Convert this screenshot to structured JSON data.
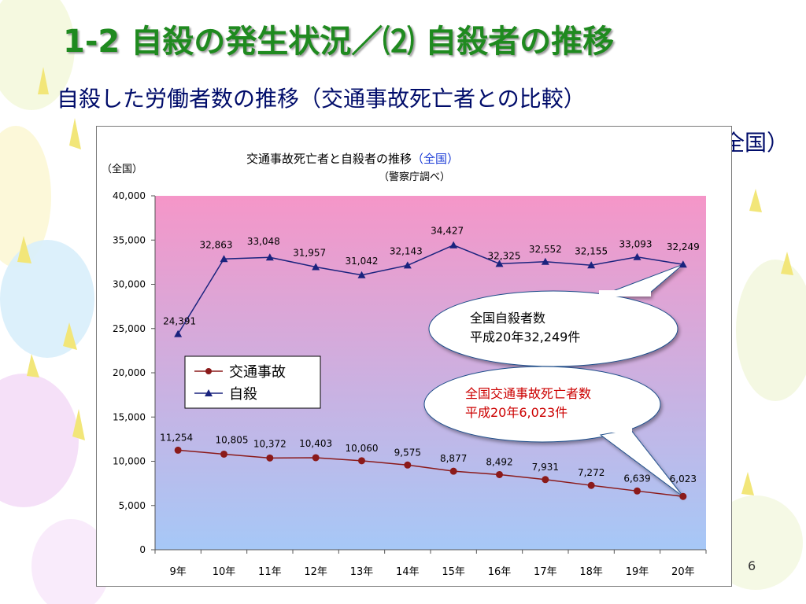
{
  "slide": {
    "title": "1-2 自殺の発生状況／⑵ 自殺者の推移",
    "subtitle": "自殺した労働者数の推移（交通事故死亡者との比較）",
    "region": "（全国）",
    "page_number": "6"
  },
  "colors": {
    "title": "#1f8a1f",
    "subtitle": "#000c6a",
    "suicide_series": "#1a237e",
    "traffic_series": "#8b1a1a",
    "plot_top": "#f596c8",
    "plot_bottom": "#a6c8f7"
  },
  "chart_data": {
    "type": "line",
    "title": "交通事故死亡者と自殺者の推移",
    "title_suffix": "（全国）",
    "subtitle": "（警察庁調べ）",
    "ylabel": "（全国）",
    "categories": [
      "9年",
      "10年",
      "11年",
      "12年",
      "13年",
      "14年",
      "15年",
      "16年",
      "17年",
      "18年",
      "19年",
      "20年"
    ],
    "ylim": [
      0,
      40000
    ],
    "yticks": [
      0,
      5000,
      10000,
      15000,
      20000,
      25000,
      30000,
      35000,
      40000
    ],
    "ytick_labels": [
      "0",
      "5,000",
      "10,000",
      "15,000",
      "20,000",
      "25,000",
      "30,000",
      "35,000",
      "40,000"
    ],
    "grid": false,
    "legend_position": "left",
    "series": [
      {
        "name": "交通事故",
        "marker": "circle",
        "color": "#8b1a1a",
        "values": [
          11254,
          10805,
          10372,
          10403,
          10060,
          9575,
          8877,
          8492,
          7931,
          7272,
          6639,
          6023
        ],
        "labels": [
          "11,254",
          "10,805",
          "10,372",
          "10,403",
          "10,060",
          "9,575",
          "8,877",
          "8,492",
          "7,931",
          "7,272",
          "6,639",
          "6,023"
        ]
      },
      {
        "name": "自殺",
        "marker": "triangle",
        "color": "#1a237e",
        "values": [
          24391,
          32863,
          33048,
          31957,
          31042,
          32143,
          34427,
          32325,
          32552,
          32155,
          33093,
          32249
        ],
        "labels": [
          "24,391",
          "32,863",
          "33,048",
          "31,957",
          "31,042",
          "32,143",
          "34,427",
          "32,325",
          "32,552",
          "32,155",
          "33,093",
          "32,249"
        ]
      }
    ],
    "callouts": [
      {
        "lines": [
          "全国自殺者数",
          "平成20年32,249件"
        ],
        "color": "#000000",
        "target_series": 1,
        "target_index": 11
      },
      {
        "lines": [
          "全国交通事故死亡者数",
          "平成20年6,023件"
        ],
        "color": "#cc0000",
        "target_series": 0,
        "target_index": 11
      }
    ]
  }
}
